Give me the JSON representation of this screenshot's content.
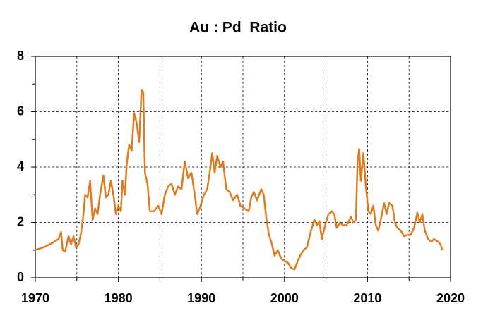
{
  "chart_data": {
    "type": "line",
    "title": "Au : Pd  Ratio",
    "x": [
      1970,
      1971,
      1972,
      1972.8,
      1973.1,
      1973.3,
      1973.6,
      1974.0,
      1974.3,
      1974.6,
      1974.9,
      1975.2,
      1975.5,
      1975.8,
      1976.0,
      1976.3,
      1976.6,
      1976.9,
      1977.2,
      1977.5,
      1977.8,
      1978.2,
      1978.5,
      1978.8,
      1979.1,
      1979.4,
      1979.7,
      1980.0,
      1980.3,
      1980.5,
      1980.8,
      1981.0,
      1981.3,
      1981.6,
      1981.9,
      1982.2,
      1982.5,
      1982.8,
      1983.0,
      1983.2,
      1983.5,
      1983.8,
      1984.3,
      1984.8,
      1985.2,
      1985.6,
      1986.0,
      1986.4,
      1986.8,
      1987.2,
      1987.6,
      1988.0,
      1988.4,
      1988.8,
      1989.2,
      1989.5,
      1989.9,
      1990.3,
      1990.7,
      1991.0,
      1991.3,
      1991.6,
      1991.9,
      1992.3,
      1992.6,
      1993.0,
      1993.4,
      1993.8,
      1994.3,
      1994.7,
      1995.2,
      1995.7,
      1996.0,
      1996.3,
      1996.7,
      1997.2,
      1997.5,
      1997.8,
      1998.1,
      1998.5,
      1998.8,
      1999.2,
      1999.6,
      2000.0,
      2000.4,
      2000.8,
      2001.2,
      2001.6,
      2001.9,
      2002.3,
      2002.7,
      2003.2,
      2003.6,
      2003.9,
      2004.2,
      2004.5,
      2004.9,
      2005.3,
      2005.7,
      2006.0,
      2006.3,
      2006.7,
      2007.0,
      2007.5,
      2008.0,
      2008.3,
      2008.6,
      2008.8,
      2009.0,
      2009.2,
      2009.5,
      2009.8,
      2010.1,
      2010.4,
      2010.7,
      2011.0,
      2011.3,
      2011.6,
      2012.0,
      2012.3,
      2012.6,
      2013.0,
      2013.3,
      2013.6,
      2014.0,
      2014.4,
      2014.8,
      2015.2,
      2015.6,
      2016.0,
      2016.3,
      2016.6,
      2016.9,
      2017.3,
      2017.7,
      2018.0,
      2018.5,
      2018.8,
      2019.0
    ],
    "series": [
      {
        "color": "#e07a1f",
        "values": [
          1.0,
          1.1,
          1.25,
          1.4,
          1.65,
          1.0,
          0.95,
          1.5,
          1.2,
          1.5,
          1.1,
          1.2,
          1.6,
          2.3,
          3.0,
          2.9,
          3.5,
          2.1,
          2.5,
          2.3,
          3.0,
          3.7,
          2.9,
          3.0,
          3.5,
          3.0,
          2.3,
          2.6,
          2.4,
          3.5,
          3.0,
          4.1,
          4.8,
          4.6,
          5.95,
          5.6,
          4.9,
          6.8,
          6.7,
          3.8,
          3.4,
          2.4,
          2.4,
          2.6,
          2.3,
          3.0,
          3.3,
          3.4,
          3.0,
          3.3,
          3.2,
          4.2,
          3.6,
          3.8,
          3.0,
          2.3,
          2.6,
          3.0,
          3.2,
          3.8,
          4.5,
          3.8,
          4.4,
          4.0,
          4.2,
          3.2,
          3.1,
          2.8,
          3.0,
          2.6,
          2.5,
          2.4,
          2.9,
          3.1,
          2.8,
          3.2,
          3.0,
          2.2,
          1.6,
          1.2,
          0.8,
          1.0,
          0.7,
          0.6,
          0.55,
          0.35,
          0.3,
          0.6,
          0.8,
          1.0,
          1.1,
          1.7,
          2.1,
          1.9,
          2.05,
          1.4,
          1.9,
          2.3,
          2.4,
          2.3,
          1.8,
          2.0,
          1.9,
          1.9,
          2.2,
          2.0,
          2.1,
          4.2,
          4.65,
          3.5,
          4.5,
          3.3,
          2.4,
          2.3,
          2.6,
          1.9,
          1.7,
          2.1,
          2.7,
          2.3,
          2.7,
          2.6,
          2.0,
          1.8,
          1.7,
          1.5,
          1.55,
          1.55,
          1.8,
          2.35,
          2.0,
          2.3,
          1.7,
          1.4,
          1.3,
          1.4,
          1.3,
          1.2,
          1.0
        ]
      }
    ],
    "xlim": [
      1970,
      2020
    ],
    "xticks": [
      1970,
      1980,
      1990,
      2000,
      2010,
      2020
    ],
    "xminor": [
      1975,
      1985,
      1995,
      2005,
      2015
    ],
    "ylim": [
      0,
      8
    ],
    "yticks": [
      0,
      2,
      4,
      6,
      8
    ],
    "yminor": [
      1,
      3,
      5,
      7
    ],
    "grid": true
  }
}
